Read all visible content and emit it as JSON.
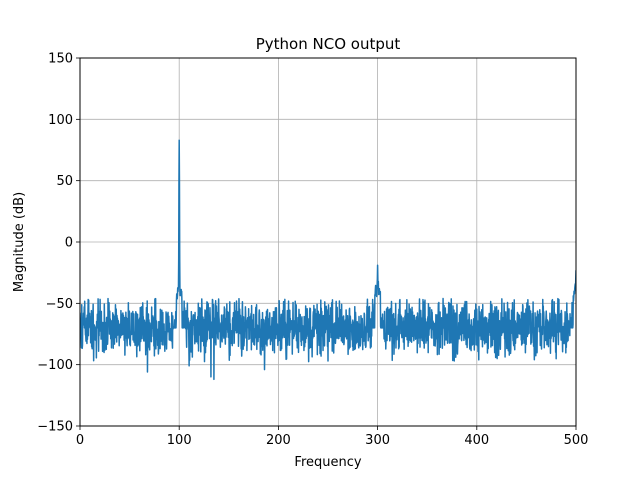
{
  "chart_data": {
    "type": "line",
    "title": "Python NCO output",
    "xlabel": "Frequency",
    "ylabel": "Magnitude (dB)",
    "xlim": [
      0,
      500
    ],
    "ylim": [
      -150,
      150
    ],
    "xticks": [
      0,
      100,
      200,
      300,
      400,
      500
    ],
    "yticks": [
      -150,
      -100,
      -50,
      0,
      50,
      100,
      150
    ],
    "xtick_labels": [
      "0",
      "100",
      "200",
      "300",
      "400",
      "500"
    ],
    "ytick_labels": [
      "−150",
      "−100",
      "−50",
      "0",
      "50",
      "100",
      "150"
    ],
    "grid": true,
    "series": [
      {
        "color": "#1f77b4",
        "noise_floor_band": [
          -90,
          -50
        ],
        "peaks": [
          {
            "x": 100,
            "y": 83
          },
          {
            "x": 300,
            "y": -19
          },
          {
            "x": 500,
            "y": -23
          }
        ],
        "notable_dips": [
          {
            "x": 68,
            "y": -106
          },
          {
            "x": 132,
            "y": -110
          },
          {
            "x": 135,
            "y": -112
          },
          {
            "x": 186,
            "y": -104
          },
          {
            "x": 110,
            "y": -101
          }
        ]
      }
    ]
  }
}
